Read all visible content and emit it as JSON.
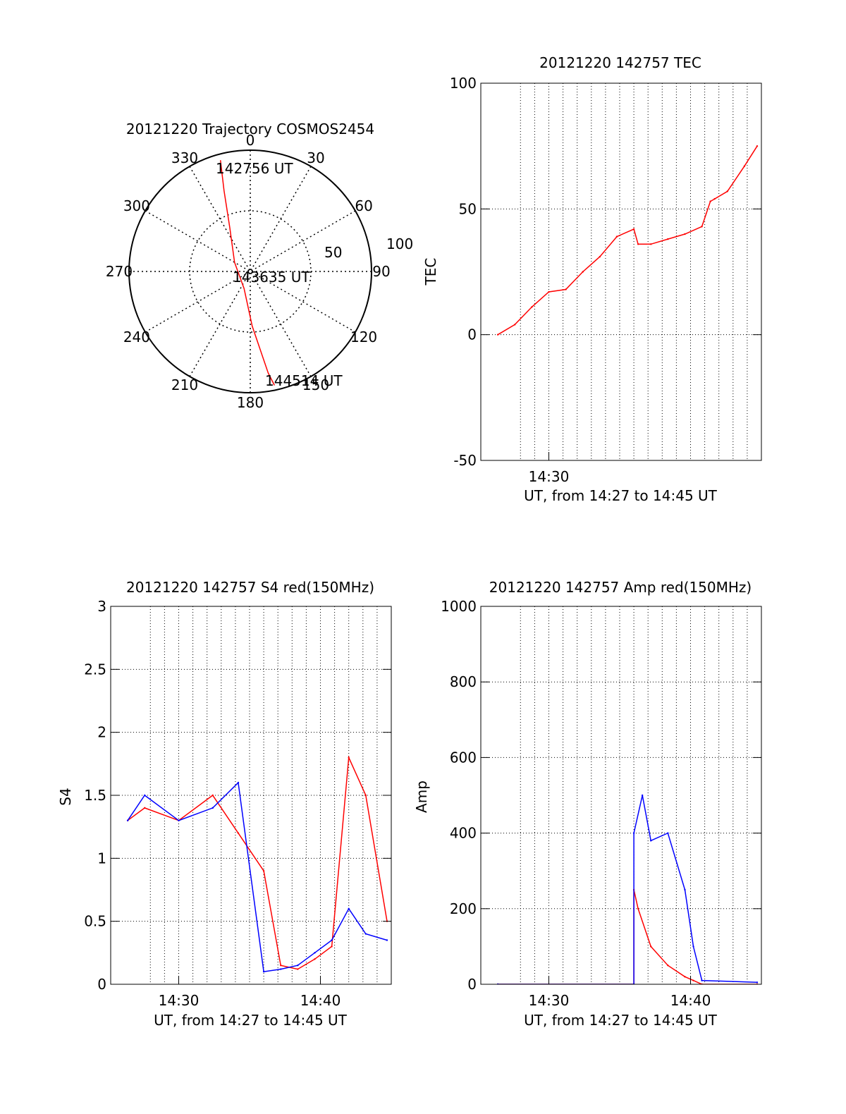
{
  "chart_data": [
    {
      "type": "polar",
      "title": "20121220 Trajectory COSMOS2454",
      "angle_labels": [
        "0",
        "30",
        "60",
        "90",
        "120",
        "150",
        "180",
        "210",
        "240",
        "270",
        "300",
        "330"
      ],
      "radius_labels": [
        "50",
        "100"
      ],
      "trajectory": {
        "color": "#ff0000",
        "points": [
          {
            "azimuth": 345,
            "zenith": 95
          },
          {
            "azimuth": 342,
            "zenith": 70
          },
          {
            "azimuth": 335,
            "zenith": 40
          },
          {
            "azimuth": 300,
            "zenith": 15
          },
          {
            "azimuth": 200,
            "zenith": 15
          },
          {
            "azimuth": 178,
            "zenith": 45
          },
          {
            "azimuth": 170,
            "zenith": 85
          },
          {
            "azimuth": 168,
            "zenith": 96
          }
        ],
        "annotations": [
          "142756 UT",
          "143635 UT",
          "144514 UT"
        ]
      }
    },
    {
      "type": "line",
      "title": "20121220 142757 TEC",
      "xlabel": "UT, from 14:27 to 14:45 UT",
      "ylabel": "TEC",
      "xlim": [
        14.42,
        14.75
      ],
      "ylim": [
        -50,
        100
      ],
      "yticks": [
        "100",
        "50",
        "0",
        "-50"
      ],
      "xticks": [
        "14:30"
      ],
      "grid": true,
      "series": [
        {
          "color": "#ff0000",
          "x": [
            14.44,
            14.46,
            14.48,
            14.5,
            14.52,
            14.54,
            14.56,
            14.58,
            14.6,
            14.605,
            14.62,
            14.64,
            14.66,
            14.68,
            14.69,
            14.695,
            14.71,
            14.73,
            14.745
          ],
          "y": [
            0,
            4,
            11,
            17,
            18,
            25,
            31,
            39,
            42,
            36,
            36,
            38,
            40,
            43,
            53,
            54,
            57,
            67,
            75
          ]
        }
      ]
    },
    {
      "type": "line",
      "title": "20121220 142757 S4 red(150MHz)",
      "xlabel": "UT, from 14:27 to 14:45 UT",
      "ylabel": "S4",
      "xlim": [
        14.42,
        14.75
      ],
      "ylim": [
        0,
        3
      ],
      "yticks": [
        "3",
        "2.5",
        "2",
        "1.5",
        "1",
        "0.5",
        "0"
      ],
      "xticks": [
        "14:30",
        "14:40"
      ],
      "grid": true,
      "series": [
        {
          "color": "#ff0000",
          "x": [
            14.44,
            14.46,
            14.5,
            14.54,
            14.57,
            14.6,
            14.62,
            14.64,
            14.66,
            14.68,
            14.7,
            14.72,
            14.745
          ],
          "y": [
            1.3,
            1.4,
            1.3,
            1.5,
            1.2,
            0.9,
            0.15,
            0.12,
            0.2,
            0.3,
            1.8,
            1.5,
            0.5
          ]
        },
        {
          "color": "#0000ff",
          "x": [
            14.44,
            14.46,
            14.5,
            14.54,
            14.57,
            14.6,
            14.62,
            14.64,
            14.66,
            14.68,
            14.7,
            14.72,
            14.745
          ],
          "y": [
            1.3,
            1.5,
            1.3,
            1.4,
            1.6,
            0.1,
            0.12,
            0.15,
            0.25,
            0.35,
            0.6,
            0.4,
            0.35
          ]
        }
      ]
    },
    {
      "type": "line",
      "title": "20121220 142757 Amp red(150MHz)",
      "xlabel": "UT, from 14:27 to 14:45 UT",
      "ylabel": "Amp",
      "xlim": [
        14.42,
        14.75
      ],
      "ylim": [
        0,
        1000
      ],
      "yticks": [
        "1000",
        "800",
        "600",
        "400",
        "200",
        "0"
      ],
      "xticks": [
        "14:30",
        "14:40"
      ],
      "grid": true,
      "series": [
        {
          "color": "#ff0000",
          "x": [
            14.44,
            14.6,
            14.6,
            14.605,
            14.62,
            14.64,
            14.66,
            14.67,
            14.68,
            14.745
          ],
          "y": [
            0,
            0,
            250,
            200,
            100,
            50,
            20,
            10,
            0,
            0
          ]
        },
        {
          "color": "#0000ff",
          "x": [
            14.44,
            14.6,
            14.6,
            14.61,
            14.62,
            14.64,
            14.66,
            14.67,
            14.68,
            14.745
          ],
          "y": [
            0,
            0,
            400,
            500,
            380,
            400,
            250,
            100,
            10,
            5
          ]
        }
      ]
    }
  ]
}
